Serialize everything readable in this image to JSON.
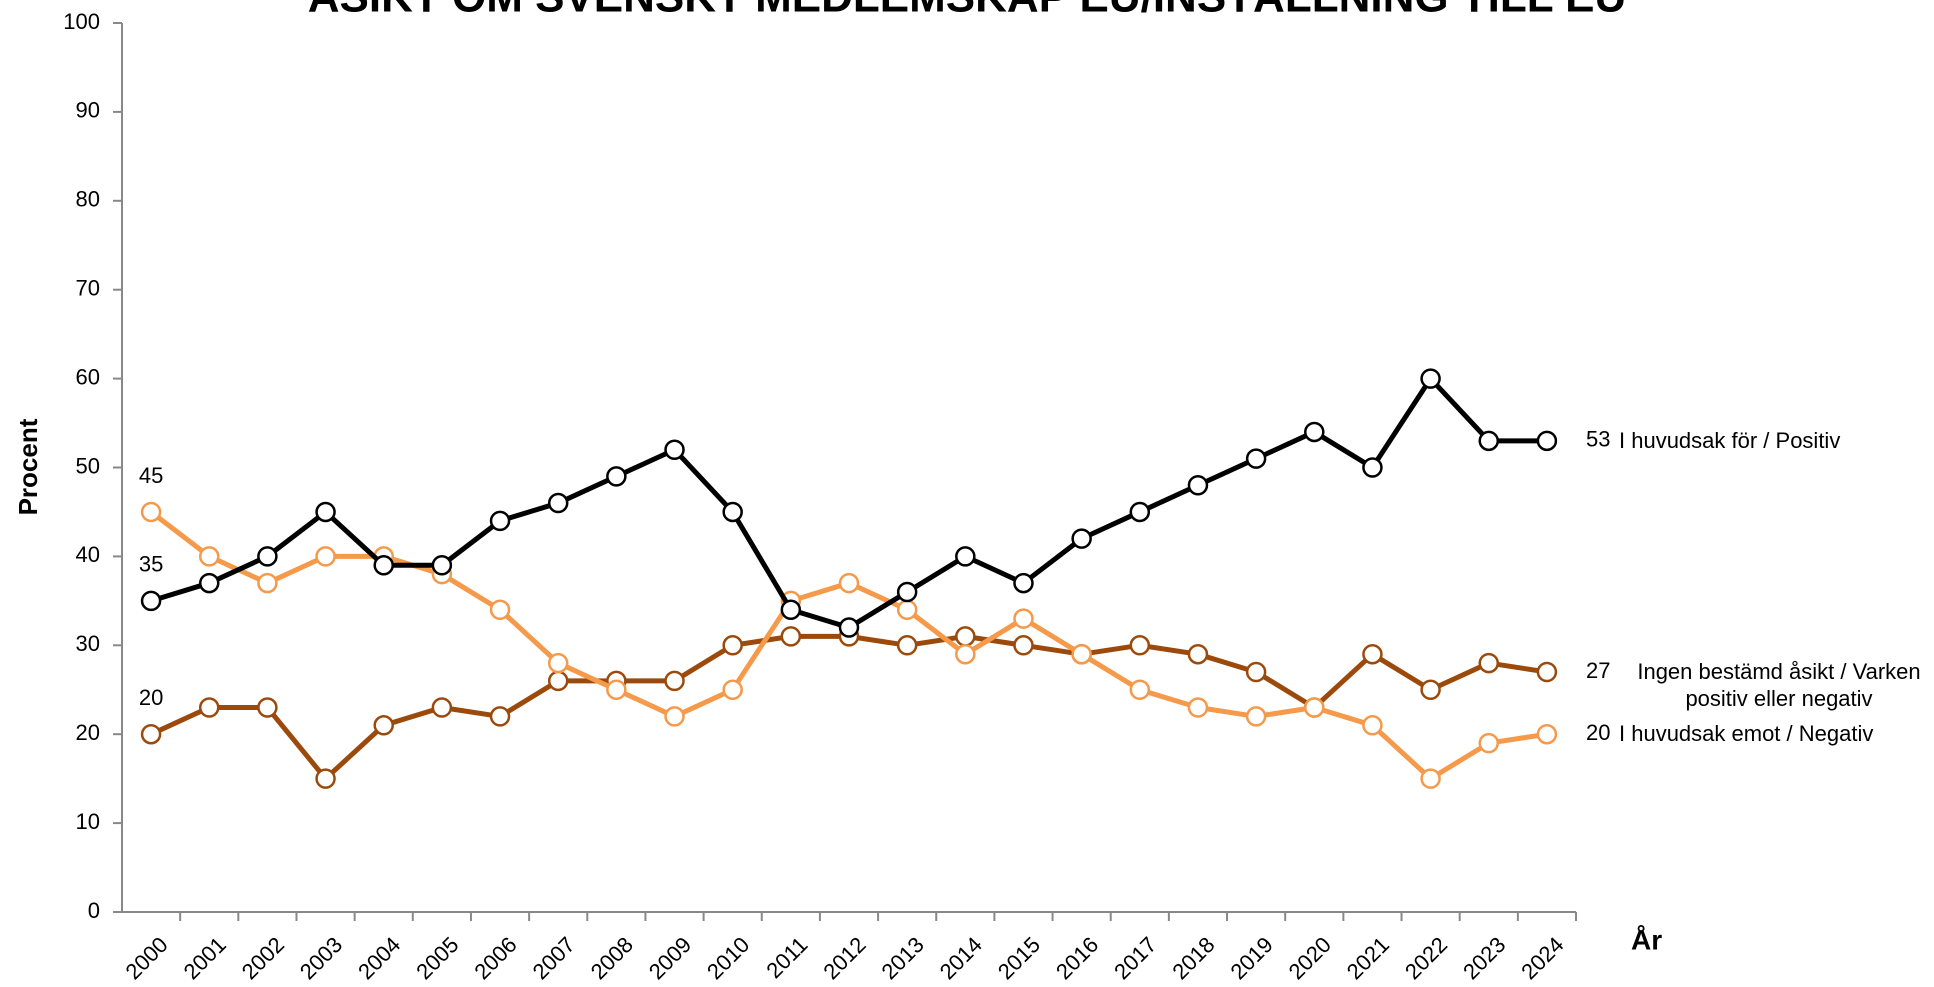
{
  "chart_data": {
    "type": "line",
    "title": "ÅSIKT OM SVENSKT MEDLEMSKAP EU/INSTÄLLNING TILL EU",
    "y_label": "Procent",
    "x_label": "År",
    "categories": [
      "2000",
      "2001",
      "2002",
      "2003",
      "2004",
      "2005",
      "2006",
      "2007",
      "2008",
      "2009",
      "2010",
      "2011",
      "2012",
      "2013",
      "2014",
      "2015",
      "2016",
      "2017",
      "2018",
      "2019",
      "2020",
      "2021",
      "2022",
      "2023",
      "2024"
    ],
    "ylim": [
      0,
      100
    ],
    "yticks": [
      0,
      10,
      20,
      30,
      40,
      50,
      60,
      70,
      80,
      90,
      100
    ],
    "grid": false,
    "series": [
      {
        "name": "Ingen bestämd åsikt / Varken positiv eller negativ",
        "color": "#9c4a0c",
        "values": [
          20,
          23,
          23,
          15,
          21,
          23,
          22,
          26,
          26,
          26,
          30,
          31,
          31,
          30,
          31,
          30,
          29,
          30,
          29,
          27,
          23,
          29,
          25,
          28,
          27
        ]
      },
      {
        "name": "I huvudsak emot / Negativ",
        "color": "#f5994a",
        "values": [
          45,
          40,
          37,
          40,
          40,
          38,
          34,
          28,
          25,
          22,
          25,
          35,
          37,
          34,
          29,
          33,
          29,
          25,
          23,
          22,
          23,
          21,
          15,
          19,
          20
        ]
      },
      {
        "name": "I huvudsak för / Positiv",
        "color": "#000000",
        "values": [
          35,
          37,
          40,
          45,
          39,
          39,
          44,
          46,
          49,
          52,
          45,
          34,
          32,
          36,
          40,
          37,
          42,
          45,
          48,
          51,
          54,
          50,
          60,
          53,
          53
        ]
      }
    ]
  }
}
